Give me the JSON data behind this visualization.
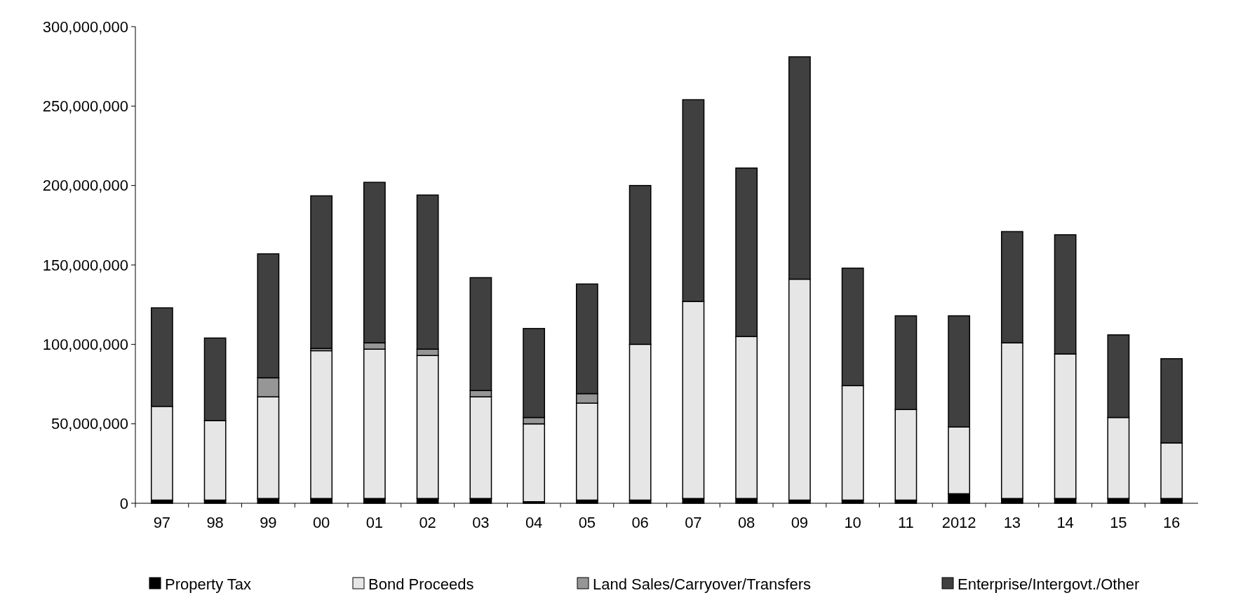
{
  "chart_data": {
    "type": "bar",
    "stacked": true,
    "categories": [
      "97",
      "98",
      "99",
      "00",
      "01",
      "02",
      "03",
      "04",
      "05",
      "06",
      "07",
      "08",
      "09",
      "10",
      "11",
      "2012",
      "13",
      "14",
      "15",
      "16"
    ],
    "series": [
      {
        "name": "Property Tax",
        "color": "#000000",
        "values": [
          2000000,
          2000000,
          3000000,
          3000000,
          3000000,
          3000000,
          3000000,
          1000000,
          2000000,
          2000000,
          3000000,
          3000000,
          2000000,
          2000000,
          2000000,
          6000000,
          3000000,
          3000000,
          3000000,
          3000000
        ]
      },
      {
        "name": "Bond Proceeds",
        "color": "#e6e6e6",
        "values": [
          59000000,
          50000000,
          64000000,
          93000000,
          94000000,
          90000000,
          64000000,
          49000000,
          61000000,
          98000000,
          124000000,
          102000000,
          139000000,
          72000000,
          57000000,
          42000000,
          98000000,
          91000000,
          51000000,
          35000000
        ]
      },
      {
        "name": "Land Sales/Carryover/Transfers",
        "color": "#969696",
        "values": [
          0,
          0,
          12000000,
          1500000,
          4000000,
          4000000,
          4000000,
          4000000,
          6000000,
          0,
          0,
          0,
          0,
          0,
          0,
          0,
          0,
          0,
          0,
          0
        ]
      },
      {
        "name": "Enterprise/Intergovt./Other",
        "color": "#404040",
        "values": [
          62000000,
          52000000,
          78000000,
          96000000,
          101000000,
          97000000,
          71000000,
          56000000,
          69000000,
          100000000,
          127000000,
          106000000,
          140000000,
          74000000,
          59000000,
          70000000,
          70000000,
          75000000,
          52000000,
          53000000
        ]
      }
    ],
    "ylim": [
      0,
      300000000
    ],
    "yticks": [
      {
        "value": 0,
        "label": "0"
      },
      {
        "value": 50000000,
        "label": "50,000,000"
      },
      {
        "value": 100000000,
        "label": "100,000,000"
      },
      {
        "value": 150000000,
        "label": "150,000,000"
      },
      {
        "value": 200000000,
        "label": "200,000,000"
      },
      {
        "value": 250000000,
        "label": "250,000,000"
      },
      {
        "value": 300000000,
        "label": "300,000,000"
      }
    ],
    "grid": false,
    "legend": "bottom"
  }
}
